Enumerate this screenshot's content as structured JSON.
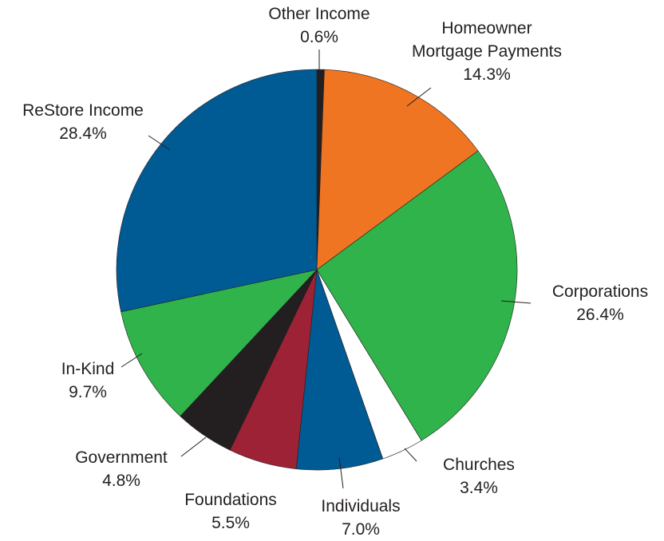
{
  "chart_data": {
    "type": "pie",
    "title": "",
    "slices": [
      {
        "name": "Other Income",
        "label_lines": [
          "Other Income"
        ],
        "value_label": "0.6%",
        "value": 0.6,
        "color": "#231f20"
      },
      {
        "name": "Homeowner Mortgage Payments",
        "label_lines": [
          "Homeowner",
          "Mortgage Payments"
        ],
        "value_label": "14.3%",
        "value": 14.3,
        "color": "#f07522"
      },
      {
        "name": "Corporations",
        "label_lines": [
          "Corporations"
        ],
        "value_label": "26.4%",
        "value": 26.4,
        "color": "#2fb34a"
      },
      {
        "name": "Churches",
        "label_lines": [
          "Churches"
        ],
        "value_label": "3.4%",
        "value": 3.4,
        "color": "#ffffff"
      },
      {
        "name": "Individuals",
        "label_lines": [
          "Individuals"
        ],
        "value_label": "7.0%",
        "value": 7.0,
        "color": "#005a94"
      },
      {
        "name": "Foundations",
        "label_lines": [
          "Foundations"
        ],
        "value_label": "5.5%",
        "value": 5.5,
        "color": "#9e2235"
      },
      {
        "name": "Government",
        "label_lines": [
          "Government"
        ],
        "value_label": "4.8%",
        "value": 4.8,
        "color": "#231f20"
      },
      {
        "name": "In-Kind",
        "label_lines": [
          "In-Kind"
        ],
        "value_label": "9.7%",
        "value": 9.7,
        "color": "#2fb34a"
      },
      {
        "name": "ReStore Income",
        "label_lines": [
          "ReStore Income"
        ],
        "value_label": "28.4%",
        "value": 28.4,
        "color": "#005a94"
      }
    ],
    "start": "12 o'clock",
    "direction": "clockwise",
    "legend": "none"
  }
}
